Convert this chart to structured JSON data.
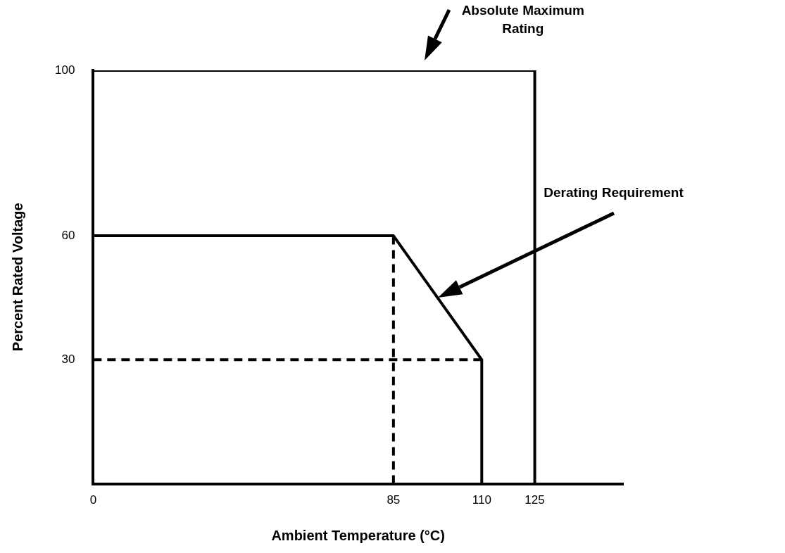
{
  "chart_data": {
    "type": "line",
    "xlabel": "Ambient Temperature (°C)",
    "ylabel": "Percent Rated Voltage",
    "xlim": [
      0,
      150
    ],
    "xticks": [
      0,
      85,
      110,
      125
    ],
    "ylim": [
      0,
      100
    ],
    "yticks": [
      30,
      60,
      100
    ],
    "grid": false,
    "marker": "none",
    "series": [
      {
        "name": "Absolute Maximum Rating",
        "color": "#000000",
        "x": [
          0,
          125,
          125
        ],
        "values": [
          100,
          100,
          0
        ],
        "line_style": "solid"
      },
      {
        "name": "Derating Requirement",
        "color": "#000000",
        "x": [
          0,
          85,
          110,
          110
        ],
        "values": [
          60,
          60,
          30,
          0
        ],
        "line_style": "solid"
      },
      {
        "color": "#000000",
        "x": [
          85,
          85
        ],
        "values": [
          0,
          60
        ],
        "line_style": "dashed"
      },
      {
        "color": "#000000",
        "x": [
          0,
          110
        ],
        "values": [
          30,
          30
        ],
        "line_style": "dashed"
      }
    ]
  }
}
